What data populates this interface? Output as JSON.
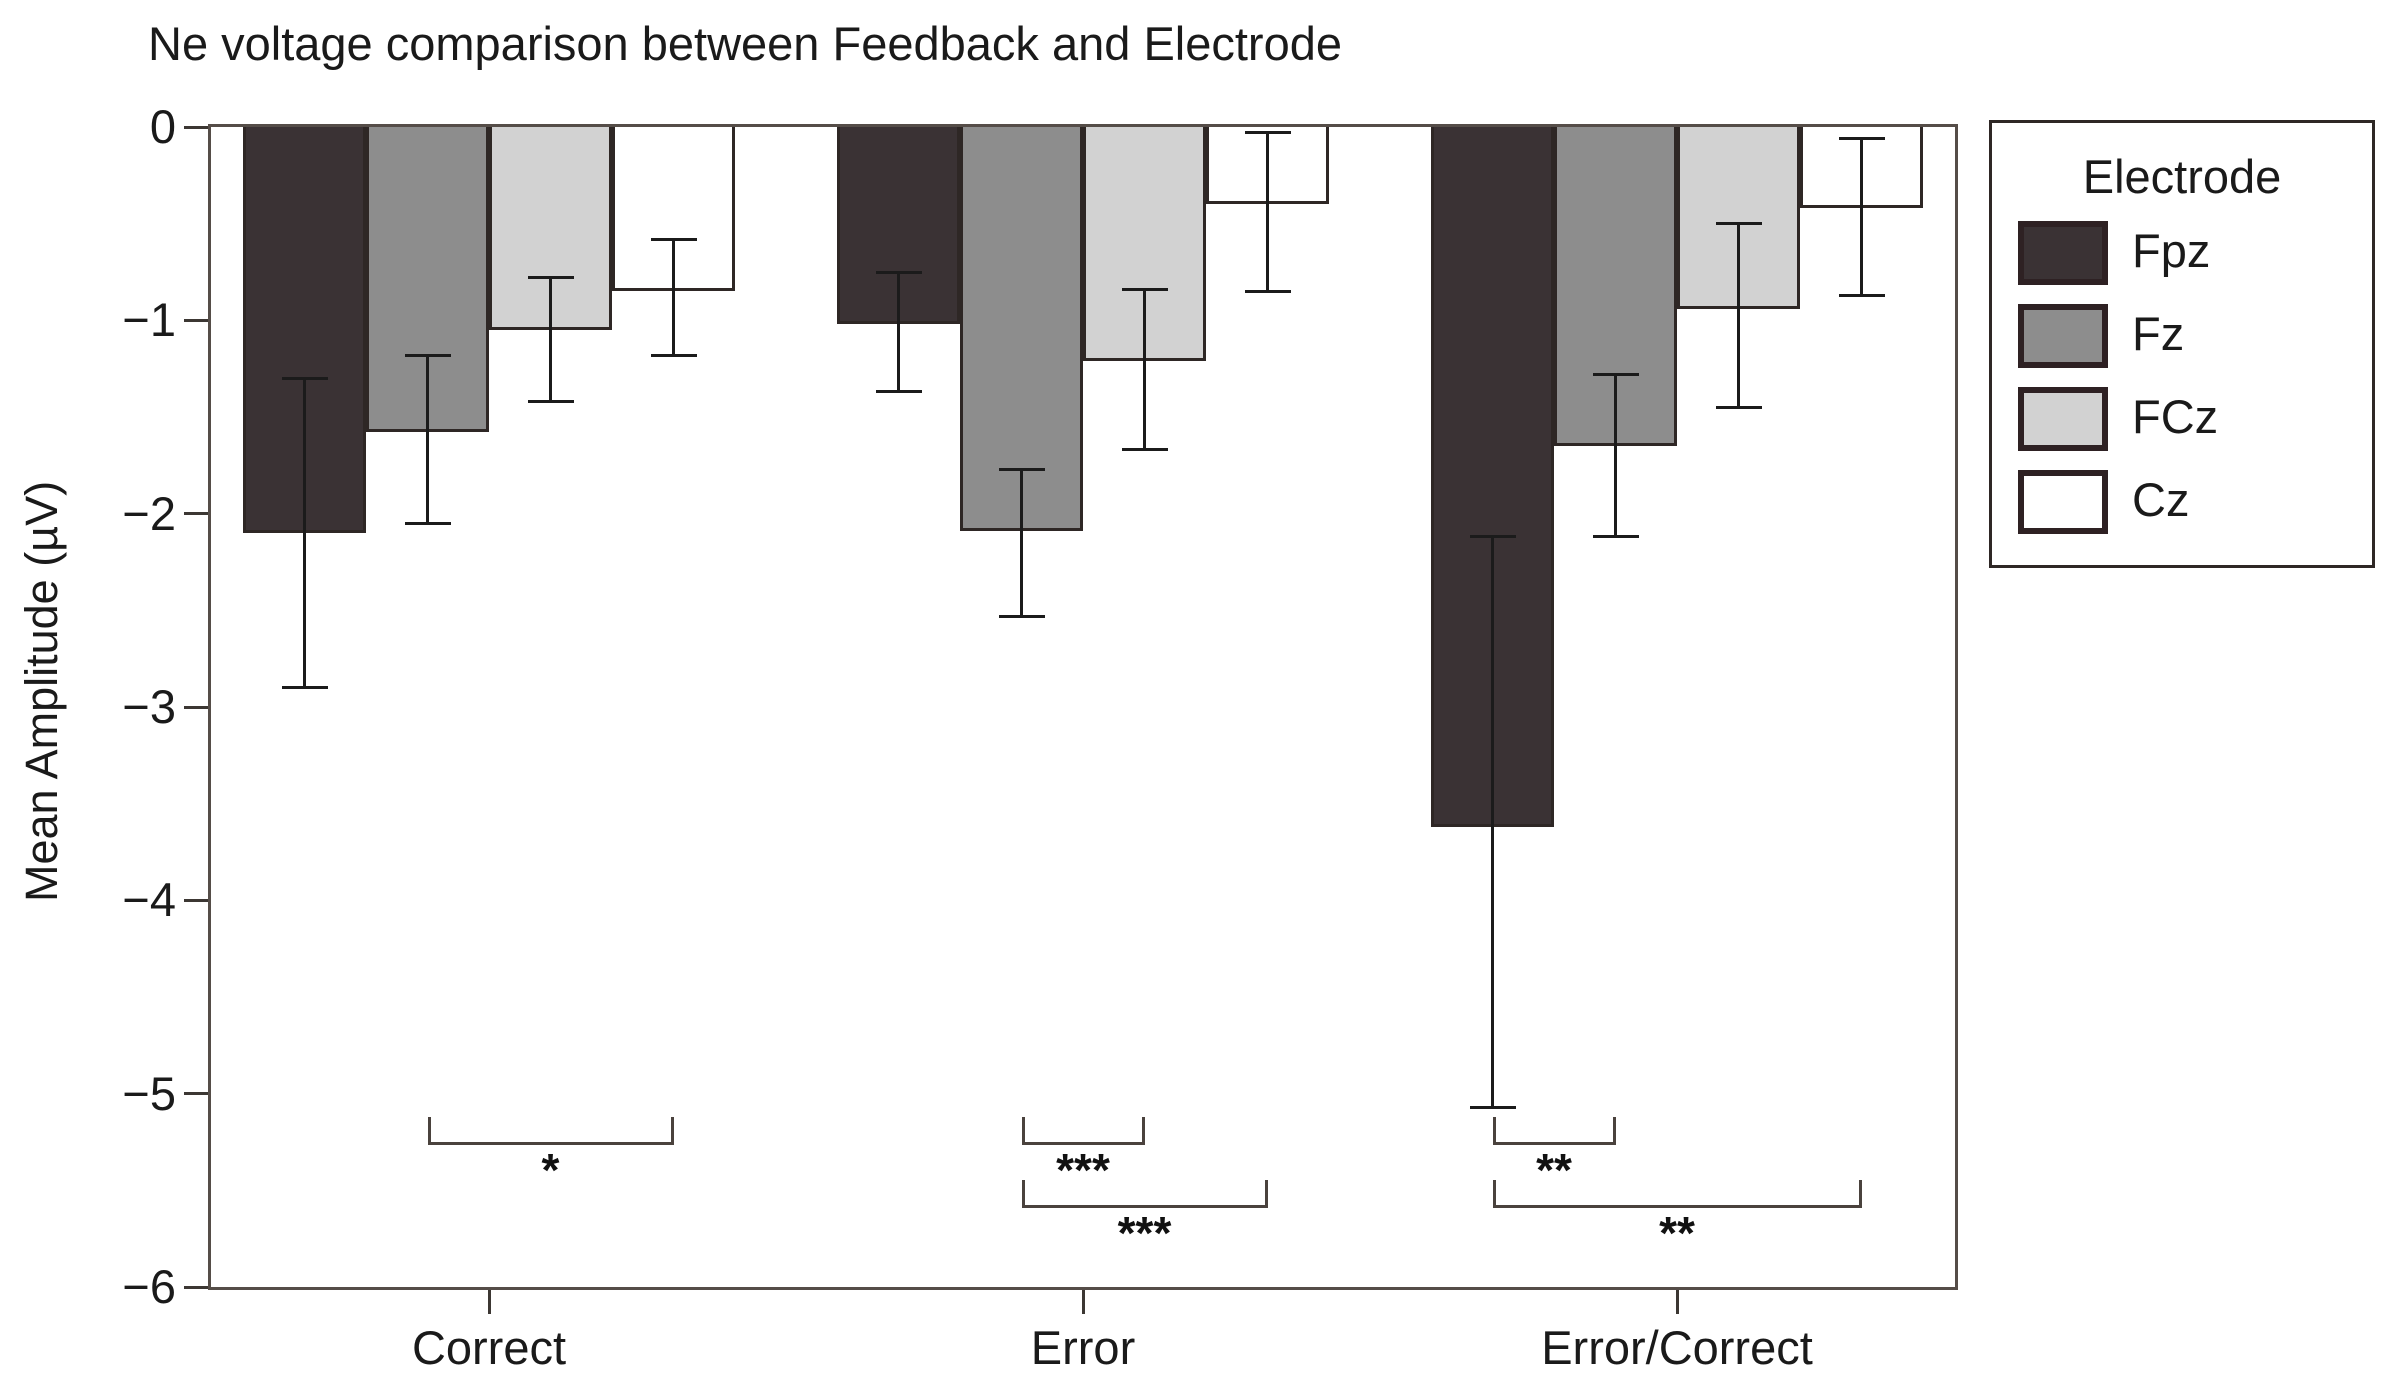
{
  "title": "Ne voltage comparison between Feedback and Electrode",
  "y_axis": {
    "label": "Mean Amplitude (µV)",
    "tick_labels": [
      "0",
      "−1",
      "−2",
      "−3",
      "−4",
      "−5",
      "−6"
    ]
  },
  "x_axis": {
    "categories": [
      "Correct",
      "Error",
      "Error/Correct"
    ]
  },
  "legend": {
    "title": "Electrode",
    "items": [
      {
        "label": "Fpz",
        "color": "#3a3234"
      },
      {
        "label": "Fz",
        "color": "#8d8d8d"
      },
      {
        "label": "FCz",
        "color": "#d2d2d2"
      },
      {
        "label": "Cz",
        "color": "#ffffff"
      }
    ]
  },
  "chart_data": {
    "type": "bar",
    "title": "Ne voltage comparison between Feedback and Electrode",
    "ylabel": "Mean Amplitude (µV)",
    "ylim": [
      -6,
      0
    ],
    "grid": false,
    "legend_position": "right-outside",
    "categories": [
      "Correct",
      "Error",
      "Error/Correct"
    ],
    "series": [
      {
        "name": "Fpz",
        "color": "#3a3234",
        "values": [
          -2.1,
          -1.02,
          -3.62
        ],
        "error_top": [
          -1.3,
          -0.75,
          -2.12
        ],
        "error_bottom": [
          -2.9,
          -1.37,
          -5.07
        ]
      },
      {
        "name": "Fz",
        "color": "#8d8d8d",
        "values": [
          -1.58,
          -2.09,
          -1.65
        ],
        "error_top": [
          -1.18,
          -1.77,
          -1.28
        ],
        "error_bottom": [
          -2.05,
          -2.53,
          -2.12
        ]
      },
      {
        "name": "FCz",
        "color": "#d2d2d2",
        "values": [
          -1.05,
          -1.21,
          -0.94
        ],
        "error_top": [
          -0.78,
          -0.84,
          -0.5
        ],
        "error_bottom": [
          -1.42,
          -1.67,
          -1.45
        ]
      },
      {
        "name": "Cz",
        "color": "#ffffff",
        "values": [
          -0.85,
          -0.4,
          -0.42
        ],
        "error_top": [
          -0.58,
          -0.03,
          -0.06
        ],
        "error_bottom": [
          -1.18,
          -0.85,
          -0.87
        ]
      }
    ],
    "significance_brackets": [
      {
        "category": "Correct",
        "from": "Fz",
        "to": "FCz_to_Cz_span_end",
        "from_series": "Fz",
        "to_series": "Cz",
        "row": 0,
        "label": "*"
      },
      {
        "category": "Error",
        "from": "Fz",
        "to": "FCz",
        "from_series": "Fz",
        "to_series": "FCz",
        "row": 0,
        "label": "***"
      },
      {
        "category": "Error",
        "from": "Fz",
        "to": "Cz",
        "from_series": "Fz",
        "to_series": "Cz",
        "row": 1,
        "label": "***"
      },
      {
        "category": "Error/Correct",
        "from": "Fpz",
        "to": "Fz",
        "from_series": "Fpz",
        "to_series": "Fz",
        "row": 0,
        "label": "**"
      },
      {
        "category": "Error/Correct",
        "from": "Fpz",
        "to": "Cz",
        "from_series": "Fpz",
        "to_series": "Cz",
        "row": 1,
        "label": "**"
      }
    ]
  }
}
